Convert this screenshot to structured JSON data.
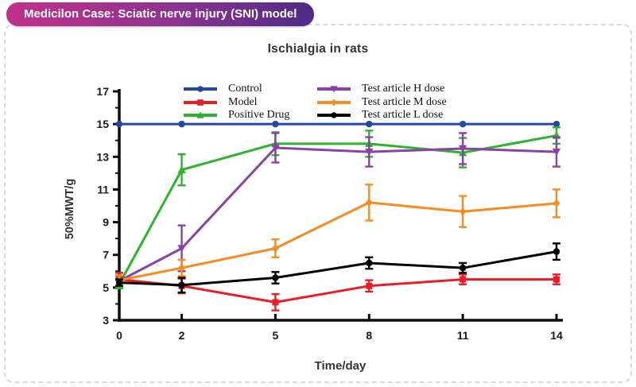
{
  "header": {
    "badge": "Medicilon Case: Sciatic nerve injury (SNI) model",
    "badge_gradient": [
      "#c03289",
      "#4e2c86"
    ]
  },
  "frame": {
    "border_color": "#d9d9d9",
    "style": "dashed rounded rectangle"
  },
  "chart_data": {
    "type": "line",
    "title": "Ischialgia in rats",
    "xlabel": "Time/day",
    "ylabel": "50%MWT/g",
    "x": [
      0,
      2,
      5,
      8,
      11,
      14
    ],
    "x_tick_labels": [
      "0",
      "2",
      "5",
      "8",
      "11",
      "14"
    ],
    "xlim": [
      0,
      14
    ],
    "ylim": [
      3,
      17
    ],
    "y_ticks_major": [
      3,
      5,
      7,
      9,
      11,
      13,
      15,
      17
    ],
    "y_ticks_minor": [
      4,
      6,
      8,
      10,
      12,
      14,
      16
    ],
    "grid": false,
    "legend_position": "top-inside-two-columns",
    "error_bars": true,
    "series": [
      {
        "name": "Control",
        "color": "#2447a0",
        "marker": "circle",
        "values": [
          15,
          15,
          15,
          15,
          15,
          15
        ],
        "errors": [
          0,
          0,
          0,
          0,
          0,
          0
        ]
      },
      {
        "name": "Model",
        "color": "#ec1c24",
        "marker": "square",
        "values": [
          5.5,
          5.1,
          4.1,
          5.1,
          5.5,
          5.5
        ],
        "errors": [
          0.4,
          0.45,
          0.5,
          0.35,
          0.3,
          0.3
        ]
      },
      {
        "name": "Positive Drug",
        "color": "#2db42d",
        "marker": "triangle-up",
        "values": [
          5.2,
          12.2,
          13.8,
          13.8,
          13.25,
          14.3
        ],
        "errors": [
          0.25,
          0.95,
          0.7,
          0.8,
          0.9,
          0.5
        ]
      },
      {
        "name": "Test article H dose",
        "color": "#8842a8",
        "marker": "triangle-down",
        "values": [
          5.4,
          7.4,
          13.55,
          13.3,
          13.5,
          13.3
        ],
        "errors": [
          0.3,
          1.4,
          0.9,
          0.9,
          0.95,
          0.9
        ]
      },
      {
        "name": "Test article M dose",
        "color": "#f68b1f",
        "marker": "diamond",
        "values": [
          5.45,
          6.2,
          7.4,
          10.2,
          9.65,
          10.15
        ],
        "errors": [
          0.3,
          0.5,
          0.55,
          1.1,
          0.95,
          0.85
        ]
      },
      {
        "name": "Test article L dose",
        "color": "#000000",
        "marker": "circle",
        "values": [
          5.3,
          5.15,
          5.6,
          6.5,
          6.2,
          7.2
        ],
        "errors": [
          0.2,
          0.45,
          0.35,
          0.35,
          0.3,
          0.5
        ]
      }
    ]
  }
}
